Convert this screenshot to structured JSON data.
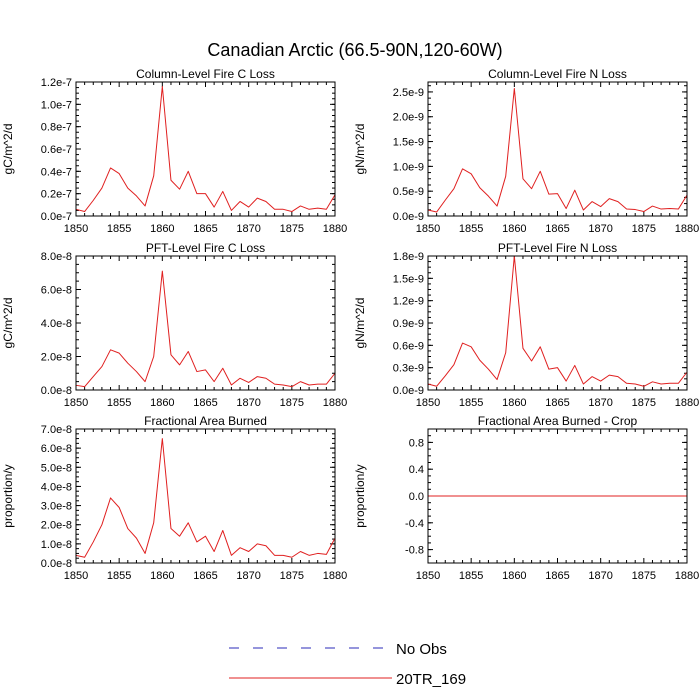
{
  "figure": {
    "title": "Canadian Arctic (66.5-90N,120-60W)"
  },
  "legend": [
    {
      "label": "No Obs",
      "color": "#2b2bb8",
      "dash": true
    },
    {
      "label": "20TR_169",
      "color": "#e02020",
      "dash": false
    }
  ],
  "chart_data": [
    {
      "type": "line",
      "title": "Column-Level Fire C Loss",
      "ylabel": "gC/m^2/d",
      "xlim": [
        1850,
        1880
      ],
      "ylim": [
        0,
        1.2e-07
      ],
      "x_ticks": [
        "1850",
        "1855",
        "1860",
        "1865",
        "1870",
        "1875",
        "1880"
      ],
      "y_ticks": [
        {
          "v": 0,
          "label": "0.0e-7"
        },
        {
          "v": 2e-08,
          "label": "0.2e-7"
        },
        {
          "v": 4e-08,
          "label": "0.4e-7"
        },
        {
          "v": 6e-08,
          "label": "0.6e-7"
        },
        {
          "v": 8e-08,
          "label": "0.8e-7"
        },
        {
          "v": 1e-07,
          "label": "1.0e-7"
        },
        {
          "v": 1.2e-07,
          "label": "1.2e-7"
        }
      ],
      "x": [
        1850,
        1851,
        1852,
        1853,
        1854,
        1855,
        1856,
        1857,
        1858,
        1859,
        1860,
        1861,
        1862,
        1863,
        1864,
        1865,
        1866,
        1867,
        1868,
        1869,
        1870,
        1871,
        1872,
        1873,
        1874,
        1875,
        1876,
        1877,
        1878,
        1879,
        1880
      ],
      "series": [
        {
          "name": "20TR_169",
          "color": "#e02020",
          "values": [
            6e-09,
            4e-09,
            1.4e-08,
            2.5e-08,
            4.3e-08,
            3.8e-08,
            2.5e-08,
            1.8e-08,
            9e-09,
            3.6e-08,
            1.16e-07,
            3.2e-08,
            2.4e-08,
            4e-08,
            2e-08,
            2e-08,
            8e-09,
            2.2e-08,
            5e-09,
            1.3e-08,
            8e-09,
            1.6e-08,
            1.3e-08,
            6e-09,
            6e-09,
            4e-09,
            9e-09,
            6e-09,
            7e-09,
            6e-09,
            1.9e-08
          ]
        }
      ]
    },
    {
      "type": "line",
      "title": "Column-Level Fire N Loss",
      "ylabel": "gN/m^2/d",
      "xlim": [
        1850,
        1880
      ],
      "ylim": [
        0,
        2.7e-09
      ],
      "x_ticks": [
        "1850",
        "1855",
        "1860",
        "1865",
        "1870",
        "1875",
        "1880"
      ],
      "y_ticks": [
        {
          "v": 0,
          "label": "0.0e-9"
        },
        {
          "v": 5e-10,
          "label": "0.5e-9"
        },
        {
          "v": 1e-09,
          "label": "1.0e-9"
        },
        {
          "v": 1.5e-09,
          "label": "1.5e-9"
        },
        {
          "v": 2e-09,
          "label": "2.0e-9"
        },
        {
          "v": 2.5e-09,
          "label": "2.5e-9"
        }
      ],
      "x": [
        1850,
        1851,
        1852,
        1853,
        1854,
        1855,
        1856,
        1857,
        1858,
        1859,
        1860,
        1861,
        1862,
        1863,
        1864,
        1865,
        1866,
        1867,
        1868,
        1869,
        1870,
        1871,
        1872,
        1873,
        1874,
        1875,
        1876,
        1877,
        1878,
        1879,
        1880
      ],
      "series": [
        {
          "name": "20TR_169",
          "color": "#e02020",
          "values": [
            1.2e-10,
            8e-11,
            3.2e-10,
            5.5e-10,
            9.5e-10,
            8.5e-10,
            5.7e-10,
            4e-10,
            2e-10,
            8e-10,
            2.57e-09,
            7.5e-10,
            5.5e-10,
            9e-10,
            4.4e-10,
            4.5e-10,
            1.5e-10,
            5.2e-10,
            1.2e-10,
            2.9e-10,
            1.9e-10,
            3.5e-10,
            2.9e-10,
            1.4e-10,
            1.3e-10,
            9e-11,
            2e-10,
            1.4e-10,
            1.5e-10,
            1.4e-10,
            4.2e-10
          ]
        }
      ]
    },
    {
      "type": "line",
      "title": "PFT-Level Fire C Loss",
      "ylabel": "gC/m^2/d",
      "xlim": [
        1850,
        1880
      ],
      "ylim": [
        0,
        8e-08
      ],
      "x_ticks": [
        "1850",
        "1855",
        "1860",
        "1865",
        "1870",
        "1875",
        "1880"
      ],
      "y_ticks": [
        {
          "v": 0,
          "label": "0.0e-8"
        },
        {
          "v": 2e-08,
          "label": "2.0e-8"
        },
        {
          "v": 4e-08,
          "label": "4.0e-8"
        },
        {
          "v": 6e-08,
          "label": "6.0e-8"
        },
        {
          "v": 8e-08,
          "label": "8.0e-8"
        }
      ],
      "x": [
        1850,
        1851,
        1852,
        1853,
        1854,
        1855,
        1856,
        1857,
        1858,
        1859,
        1860,
        1861,
        1862,
        1863,
        1864,
        1865,
        1866,
        1867,
        1868,
        1869,
        1870,
        1871,
        1872,
        1873,
        1874,
        1875,
        1876,
        1877,
        1878,
        1879,
        1880
      ],
      "series": [
        {
          "name": "20TR_169",
          "color": "#e02020",
          "values": [
            2.8e-09,
            2e-09,
            8e-09,
            1.4e-08,
            2.4e-08,
            2.2e-08,
            1.6e-08,
            1.1e-08,
            5e-09,
            2e-08,
            7.1e-08,
            2.1e-08,
            1.5e-08,
            2.3e-08,
            1.1e-08,
            1.2e-08,
            5e-09,
            1.3e-08,
            3e-09,
            7e-09,
            4.5e-09,
            8e-09,
            7e-09,
            3.5e-09,
            3e-09,
            2e-09,
            5e-09,
            3e-09,
            3.5e-09,
            3.5e-09,
            1e-08
          ]
        }
      ]
    },
    {
      "type": "line",
      "title": "PFT-Level Fire N Loss",
      "ylabel": "gN/m^2/d",
      "xlim": [
        1850,
        1880
      ],
      "ylim": [
        0,
        1.8e-09
      ],
      "x_ticks": [
        "1850",
        "1855",
        "1860",
        "1865",
        "1870",
        "1875",
        "1880"
      ],
      "y_ticks": [
        {
          "v": 0,
          "label": "0.0e-9"
        },
        {
          "v": 3e-10,
          "label": "0.3e-9"
        },
        {
          "v": 6e-10,
          "label": "0.6e-9"
        },
        {
          "v": 9e-10,
          "label": "0.9e-9"
        },
        {
          "v": 1.2e-09,
          "label": "1.2e-9"
        },
        {
          "v": 1.5e-09,
          "label": "1.5e-9"
        },
        {
          "v": 1.8e-09,
          "label": "1.8e-9"
        }
      ],
      "x": [
        1850,
        1851,
        1852,
        1853,
        1854,
        1855,
        1856,
        1857,
        1858,
        1859,
        1860,
        1861,
        1862,
        1863,
        1864,
        1865,
        1866,
        1867,
        1868,
        1869,
        1870,
        1871,
        1872,
        1873,
        1874,
        1875,
        1876,
        1877,
        1878,
        1879,
        1880
      ],
      "series": [
        {
          "name": "20TR_169",
          "color": "#e02020",
          "values": [
            8e-11,
            5e-11,
            1.9e-10,
            3.4e-10,
            6.3e-10,
            5.8e-10,
            4e-10,
            2.8e-10,
            1.4e-10,
            5e-10,
            1.8e-09,
            5.6e-10,
            3.9e-10,
            5.8e-10,
            2.8e-10,
            3e-10,
            1.2e-10,
            3.3e-10,
            8e-11,
            1.8e-10,
            1.2e-10,
            2e-10,
            1.8e-10,
            9e-11,
            8e-11,
            5e-11,
            1.1e-10,
            8e-11,
            9e-11,
            9e-11,
            2.4e-10
          ]
        }
      ]
    },
    {
      "type": "line",
      "title": "Fractional Area Burned",
      "ylabel": "proportion/y",
      "xlim": [
        1850,
        1880
      ],
      "ylim": [
        0,
        7e-08
      ],
      "x_ticks": [
        "1850",
        "1855",
        "1860",
        "1865",
        "1870",
        "1875",
        "1880"
      ],
      "y_ticks": [
        {
          "v": 0,
          "label": "0.0e-8"
        },
        {
          "v": 1e-08,
          "label": "1.0e-8"
        },
        {
          "v": 2e-08,
          "label": "2.0e-8"
        },
        {
          "v": 3e-08,
          "label": "3.0e-8"
        },
        {
          "v": 4e-08,
          "label": "4.0e-8"
        },
        {
          "v": 5e-08,
          "label": "5.0e-8"
        },
        {
          "v": 6e-08,
          "label": "6.0e-8"
        },
        {
          "v": 7e-08,
          "label": "7.0e-8"
        }
      ],
      "x": [
        1850,
        1851,
        1852,
        1853,
        1854,
        1855,
        1856,
        1857,
        1858,
        1859,
        1860,
        1861,
        1862,
        1863,
        1864,
        1865,
        1866,
        1867,
        1868,
        1869,
        1870,
        1871,
        1872,
        1873,
        1874,
        1875,
        1876,
        1877,
        1878,
        1879,
        1880
      ],
      "series": [
        {
          "name": "20TR_169",
          "color": "#e02020",
          "values": [
            4e-09,
            3e-09,
            1.1e-08,
            2e-08,
            3.4e-08,
            2.9e-08,
            1.8e-08,
            1.3e-08,
            5e-09,
            2.1e-08,
            6.5e-08,
            1.8e-08,
            1.4e-08,
            2.1e-08,
            1.1e-08,
            1.4e-08,
            6e-09,
            1.7e-08,
            4e-09,
            8e-09,
            6e-09,
            1e-08,
            9e-09,
            4e-09,
            4e-09,
            3e-09,
            6e-09,
            4e-09,
            5e-09,
            4.5e-09,
            1.3e-08
          ]
        }
      ]
    },
    {
      "type": "line",
      "title": "Fractional Area Burned - Crop",
      "ylabel": "proportion/y",
      "xlim": [
        1850,
        1880
      ],
      "ylim": [
        -1,
        1
      ],
      "x_ticks": [
        "1850",
        "1855",
        "1860",
        "1865",
        "1870",
        "1875",
        "1880"
      ],
      "y_ticks": [
        {
          "v": -0.8,
          "label": "-0.8"
        },
        {
          "v": -0.4,
          "label": "-0.4"
        },
        {
          "v": 0,
          "label": "0.0"
        },
        {
          "v": 0.4,
          "label": "0.4"
        },
        {
          "v": 0.8,
          "label": "0.8"
        }
      ],
      "x": [
        1850,
        1880
      ],
      "series": [
        {
          "name": "20TR_169",
          "color": "#e02020",
          "values": [
            0,
            0
          ]
        }
      ]
    }
  ]
}
